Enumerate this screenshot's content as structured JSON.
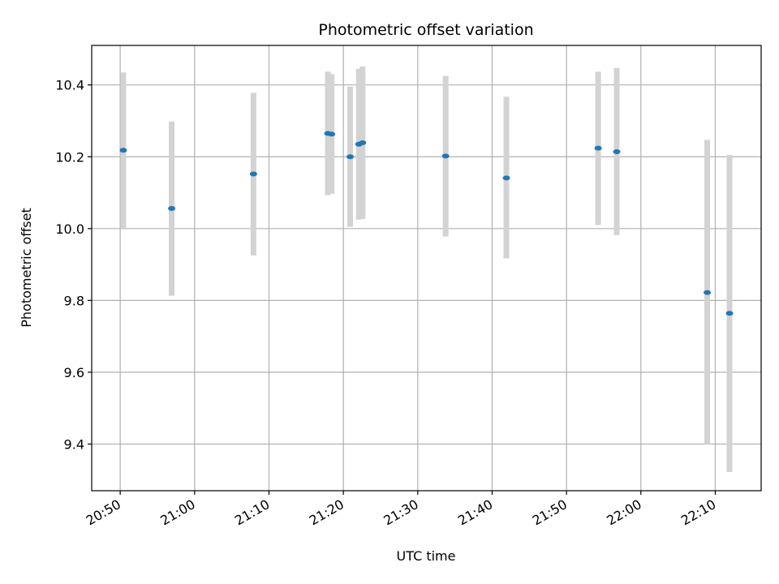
{
  "chart_data": {
    "type": "scatter",
    "title": "Photometric offset variation",
    "xlabel": "UTC time",
    "ylabel": "Photometric offset",
    "xlim": [
      "20:46:10",
      "22:16:10"
    ],
    "ylim": [
      9.27,
      10.51
    ],
    "x_ticks": [
      "20:50",
      "21:00",
      "21:10",
      "21:20",
      "21:30",
      "21:40",
      "21:50",
      "22:00",
      "22:10"
    ],
    "y_ticks": [
      "9.4",
      "9.6",
      "9.8",
      "10.0",
      "10.2",
      "10.4"
    ],
    "grid": true,
    "errorbar_color": "#d3d3d3",
    "marker_color": "#1f77b4",
    "points": [
      {
        "t": "20:50:25",
        "y": 10.218,
        "low": 10.0,
        "high": 10.435
      },
      {
        "t": "20:56:55",
        "y": 10.056,
        "low": 9.813,
        "high": 10.298
      },
      {
        "t": "21:07:55",
        "y": 10.152,
        "low": 9.925,
        "high": 10.378
      },
      {
        "t": "21:17:55",
        "y": 10.265,
        "low": 10.093,
        "high": 10.437
      },
      {
        "t": "21:18:25",
        "y": 10.263,
        "low": 10.097,
        "high": 10.43
      },
      {
        "t": "21:20:55",
        "y": 10.2,
        "low": 10.005,
        "high": 10.395
      },
      {
        "t": "21:22:05",
        "y": 10.235,
        "low": 10.025,
        "high": 10.445
      },
      {
        "t": "21:22:35",
        "y": 10.239,
        "low": 10.027,
        "high": 10.451
      },
      {
        "t": "21:33:45",
        "y": 10.202,
        "low": 9.978,
        "high": 10.425
      },
      {
        "t": "21:41:55",
        "y": 10.141,
        "low": 9.917,
        "high": 10.367
      },
      {
        "t": "21:54:15",
        "y": 10.224,
        "low": 10.01,
        "high": 10.437
      },
      {
        "t": "21:56:45",
        "y": 10.214,
        "low": 9.982,
        "high": 10.447
      },
      {
        "t": "22:08:55",
        "y": 9.822,
        "low": 9.4,
        "high": 10.247
      },
      {
        "t": "22:11:55",
        "y": 9.764,
        "low": 9.322,
        "high": 10.205
      }
    ]
  }
}
